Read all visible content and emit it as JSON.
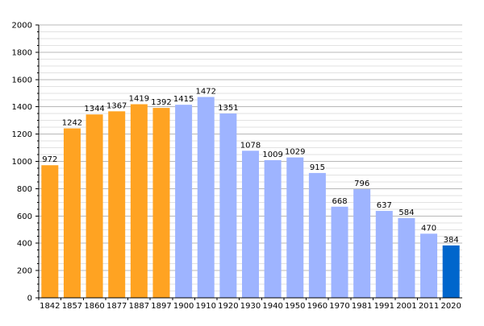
{
  "chart_data": {
    "type": "bar",
    "title": "",
    "xlabel": "",
    "ylabel": "",
    "ylim": [
      0,
      2000
    ],
    "yticks": [
      0,
      200,
      400,
      600,
      800,
      1000,
      1200,
      1400,
      1600,
      1800,
      2000
    ],
    "grid": true,
    "legend": "none",
    "categories": [
      "1842",
      "1857",
      "1860",
      "1877",
      "1887",
      "1897",
      "1900",
      "1910",
      "1920",
      "1930",
      "1940",
      "1950",
      "1960",
      "1970",
      "1981",
      "1991",
      "2001",
      "2011",
      "2020"
    ],
    "values": [
      972,
      1242,
      1344,
      1367,
      1419,
      1392,
      1415,
      1472,
      1351,
      1078,
      1009,
      1029,
      915,
      668,
      796,
      637,
      584,
      470,
      384
    ],
    "colors": [
      "#ffa322",
      "#ffa322",
      "#ffa322",
      "#ffa322",
      "#ffa322",
      "#ffa322",
      "#9eb4ff",
      "#9eb4ff",
      "#9eb4ff",
      "#9eb4ff",
      "#9eb4ff",
      "#9eb4ff",
      "#9eb4ff",
      "#9eb4ff",
      "#9eb4ff",
      "#9eb4ff",
      "#9eb4ff",
      "#9eb4ff",
      "#0066cc"
    ]
  }
}
